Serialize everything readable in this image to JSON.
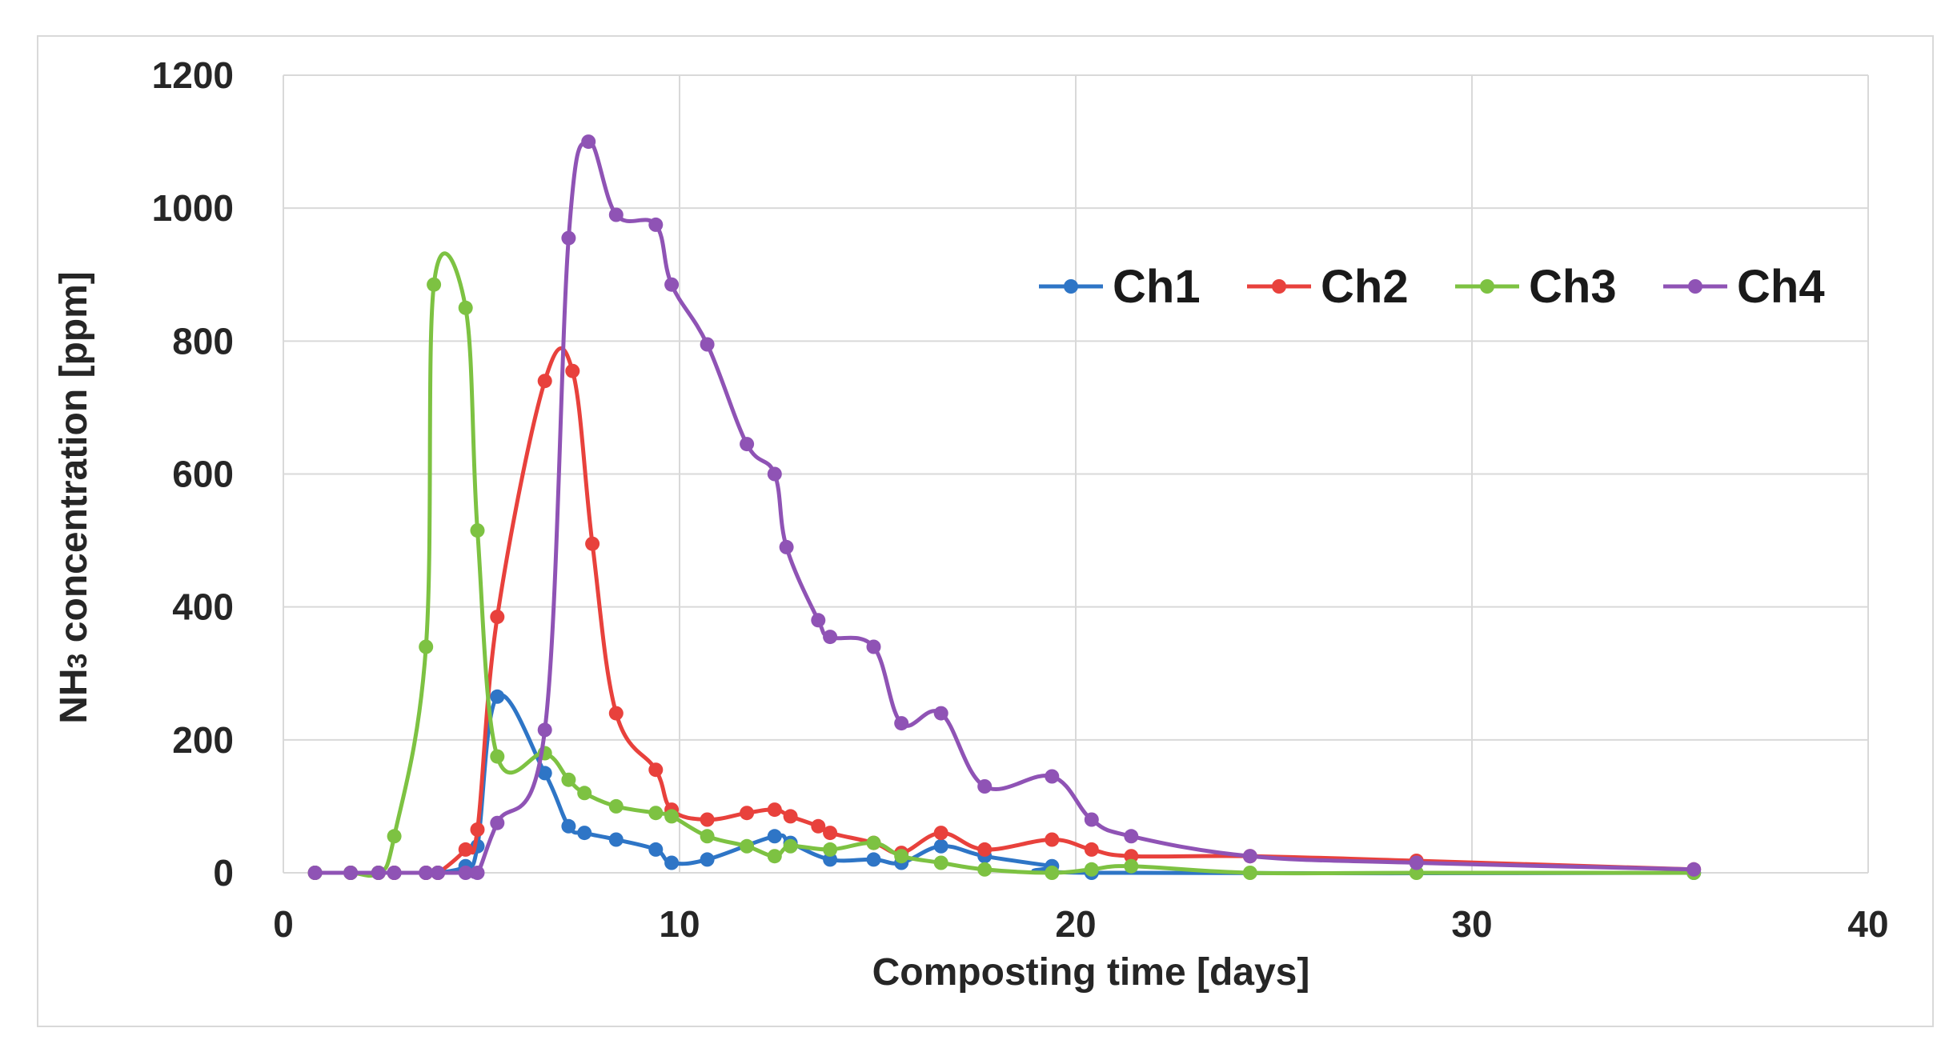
{
  "chart_data": {
    "type": "line",
    "title": "",
    "xlabel": "Composting time [days]",
    "ylabel_main": "NH",
    "ylabel_sub": "3",
    "ylabel_rest": " concentration [ppm]",
    "xlim": [
      0,
      40
    ],
    "ylim": [
      0,
      1200
    ],
    "xticks": [
      0,
      10,
      20,
      30,
      40
    ],
    "xtick_labels": [
      "0",
      "10",
      "20",
      "30",
      "40"
    ],
    "yticks": [
      0,
      200,
      400,
      600,
      800,
      1000,
      1200
    ],
    "ytick_labels": [
      "0",
      "200",
      "400",
      "600",
      "800",
      "1000",
      "1200"
    ],
    "grid": true,
    "legend_position": "top-right",
    "series": [
      {
        "name": "Ch1",
        "color": "#2e75c6",
        "points": [
          [
            0.8,
            0
          ],
          [
            1.7,
            0
          ],
          [
            2.4,
            0
          ],
          [
            2.8,
            0
          ],
          [
            3.6,
            0
          ],
          [
            3.9,
            0
          ],
          [
            4.6,
            10
          ],
          [
            4.9,
            40
          ],
          [
            5.4,
            265
          ],
          [
            6.6,
            150
          ],
          [
            7.2,
            70
          ],
          [
            7.6,
            60
          ],
          [
            8.4,
            50
          ],
          [
            9.4,
            35
          ],
          [
            9.8,
            15
          ],
          [
            10.7,
            20
          ],
          [
            12.4,
            55
          ],
          [
            12.8,
            45
          ],
          [
            13.8,
            20
          ],
          [
            14.9,
            20
          ],
          [
            15.6,
            15
          ],
          [
            16.6,
            40
          ],
          [
            17.7,
            25
          ],
          [
            19.4,
            10
          ],
          [
            20.4,
            0
          ],
          [
            35.6,
            0
          ]
        ]
      },
      {
        "name": "Ch2",
        "color": "#e8413c",
        "points": [
          [
            0.8,
            0
          ],
          [
            1.7,
            0
          ],
          [
            2.4,
            0
          ],
          [
            2.8,
            0
          ],
          [
            3.6,
            0
          ],
          [
            3.9,
            0
          ],
          [
            4.6,
            35
          ],
          [
            4.9,
            65
          ],
          [
            5.4,
            385
          ],
          [
            6.6,
            740
          ],
          [
            7.3,
            755
          ],
          [
            7.8,
            495
          ],
          [
            8.4,
            240
          ],
          [
            9.4,
            155
          ],
          [
            9.8,
            95
          ],
          [
            10.7,
            80
          ],
          [
            11.7,
            90
          ],
          [
            12.4,
            95
          ],
          [
            12.8,
            85
          ],
          [
            13.5,
            70
          ],
          [
            13.8,
            60
          ],
          [
            14.9,
            45
          ],
          [
            15.6,
            30
          ],
          [
            16.6,
            60
          ],
          [
            17.7,
            35
          ],
          [
            19.4,
            50
          ],
          [
            20.4,
            35
          ],
          [
            21.4,
            25
          ],
          [
            24.4,
            25
          ],
          [
            28.6,
            18
          ],
          [
            35.6,
            5
          ]
        ]
      },
      {
        "name": "Ch3",
        "color": "#7dc242",
        "points": [
          [
            0.8,
            0
          ],
          [
            1.7,
            0
          ],
          [
            2.4,
            0
          ],
          [
            2.8,
            55
          ],
          [
            3.6,
            340
          ],
          [
            3.8,
            885
          ],
          [
            4.6,
            850
          ],
          [
            4.9,
            515
          ],
          [
            5.4,
            175
          ],
          [
            6.6,
            180
          ],
          [
            7.2,
            140
          ],
          [
            7.6,
            120
          ],
          [
            8.4,
            100
          ],
          [
            9.4,
            90
          ],
          [
            9.8,
            85
          ],
          [
            10.7,
            55
          ],
          [
            11.7,
            40
          ],
          [
            12.4,
            25
          ],
          [
            12.8,
            40
          ],
          [
            13.8,
            35
          ],
          [
            14.9,
            45
          ],
          [
            15.6,
            25
          ],
          [
            16.6,
            15
          ],
          [
            17.7,
            5
          ],
          [
            19.4,
            0
          ],
          [
            20.4,
            5
          ],
          [
            21.4,
            10
          ],
          [
            24.4,
            0
          ],
          [
            28.6,
            0
          ],
          [
            35.6,
            0
          ]
        ]
      },
      {
        "name": "Ch4",
        "color": "#8f53b5",
        "points": [
          [
            0.8,
            0
          ],
          [
            1.7,
            0
          ],
          [
            2.4,
            0
          ],
          [
            2.8,
            0
          ],
          [
            3.6,
            0
          ],
          [
            3.9,
            0
          ],
          [
            4.6,
            0
          ],
          [
            4.9,
            0
          ],
          [
            5.4,
            75
          ],
          [
            6.6,
            215
          ],
          [
            7.2,
            955
          ],
          [
            7.7,
            1100
          ],
          [
            8.4,
            990
          ],
          [
            9.4,
            975
          ],
          [
            9.8,
            885
          ],
          [
            10.7,
            795
          ],
          [
            11.7,
            645
          ],
          [
            12.4,
            600
          ],
          [
            12.7,
            490
          ],
          [
            13.5,
            380
          ],
          [
            13.8,
            355
          ],
          [
            14.9,
            340
          ],
          [
            15.6,
            225
          ],
          [
            16.6,
            240
          ],
          [
            17.7,
            130
          ],
          [
            19.4,
            145
          ],
          [
            20.4,
            80
          ],
          [
            21.4,
            55
          ],
          [
            24.4,
            25
          ],
          [
            28.6,
            15
          ],
          [
            35.6,
            5
          ]
        ]
      }
    ]
  }
}
